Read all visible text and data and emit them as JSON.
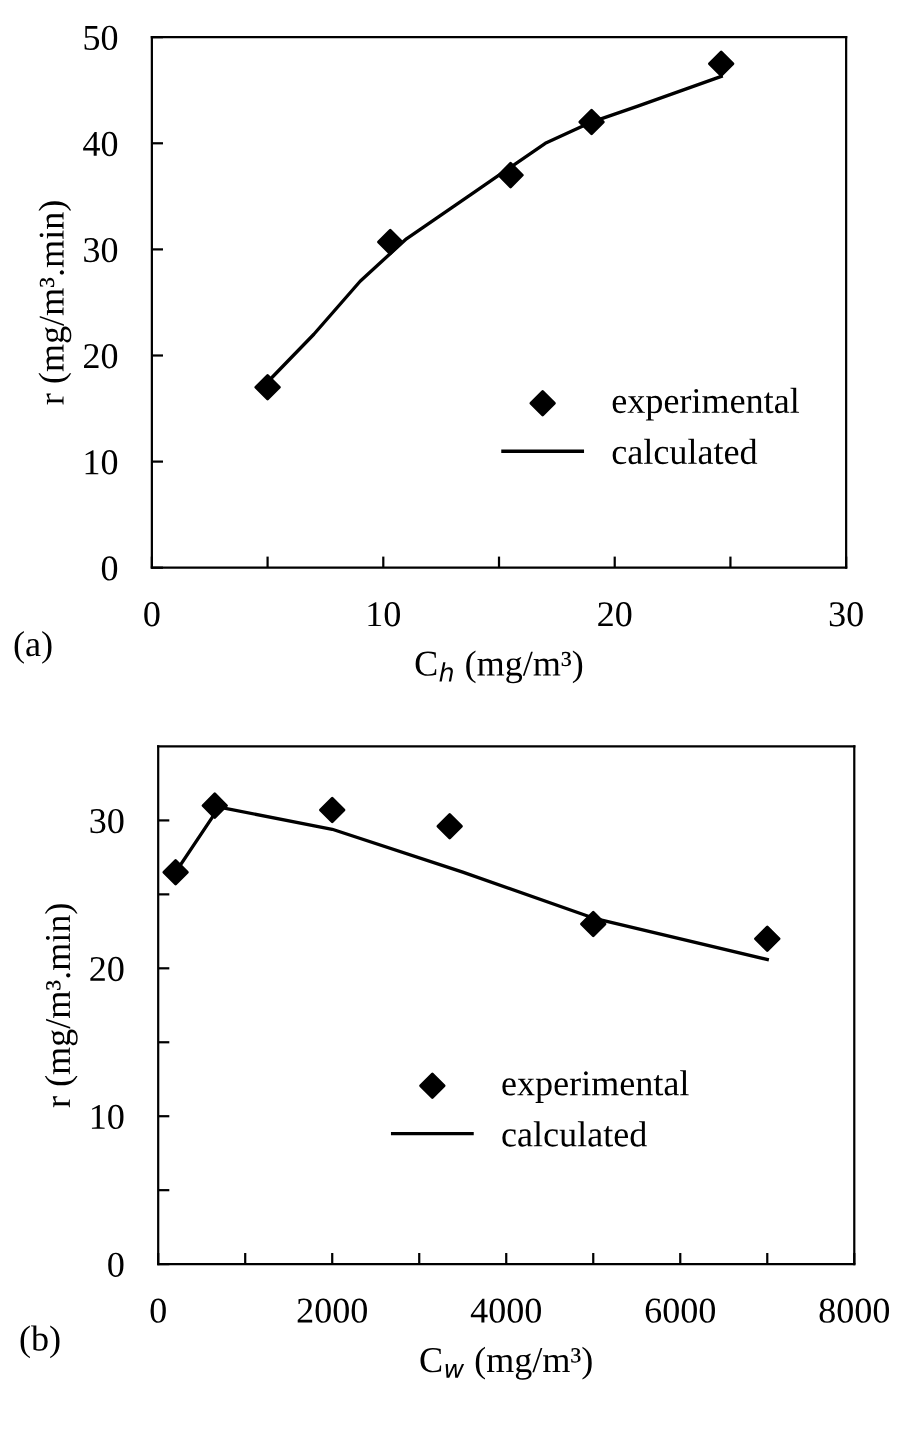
{
  "chart_data": [
    {
      "type": "scatter",
      "xlabel": "C$_{h}$ (mg/m³)",
      "ylabel": "r (mg/m³.min)",
      "annotations": [
        "(a)"
      ],
      "xlim": [
        0,
        30
      ],
      "xticks": [
        0,
        {
          "value": 5,
          "label": null
        },
        10,
        {
          "value": 15,
          "label": null
        },
        20,
        {
          "value": 25,
          "label": null
        },
        30
      ],
      "ylim": [
        0,
        50
      ],
      "yticks": [
        0,
        10,
        20,
        30,
        40,
        50
      ],
      "legend": "lower right",
      "grid": false,
      "series": [
        {
          "name": "experimental",
          "marker": "diamond",
          "color": "#000000",
          "x": [
            5,
            10.3,
            15.5,
            19,
            24.6
          ],
          "values": [
            17,
            30.7,
            37,
            42,
            47.5
          ]
        },
        {
          "name": "calculated",
          "type": "line",
          "marker": "none",
          "line_style": "solid",
          "color": "#000000",
          "x": [
            5,
            7,
            9,
            11,
            14,
            17,
            19,
            21,
            24.6
          ],
          "values": [
            17.5,
            22,
            27,
            31,
            35.5,
            40,
            42,
            43.5,
            46.3
          ]
        }
      ]
    },
    {
      "type": "scatter",
      "xlabel": "C$_{w}$ (mg/m³)",
      "ylabel": "r (mg/m³.min)",
      "annotations": [
        "(b)"
      ],
      "xlim": [
        0,
        8000
      ],
      "xticks": [
        0,
        {
          "value": 1000,
          "label": null
        },
        2000,
        {
          "value": 3000,
          "label": null
        },
        4000,
        {
          "value": 5000,
          "label": null
        },
        6000,
        {
          "value": 7000,
          "label": null
        },
        8000
      ],
      "ylim": [
        0,
        35
      ],
      "yticks": [
        0,
        {
          "value": 5,
          "label": null
        },
        10,
        {
          "value": 15,
          "label": null
        },
        20,
        {
          "value": 25,
          "label": null
        },
        30
      ],
      "legend": "lower center",
      "grid": false,
      "series": [
        {
          "name": "experimental",
          "marker": "diamond",
          "color": "#000000",
          "x": [
            200,
            650,
            2000,
            3350,
            5000,
            7000
          ],
          "values": [
            26.5,
            31,
            30.7,
            29.6,
            23,
            22
          ]
        },
        {
          "name": "calculated",
          "type": "line",
          "marker": "none",
          "line_style": "solid",
          "color": "#000000",
          "x": [
            200,
            700,
            2000,
            3500,
            5000,
            7000
          ],
          "values": [
            26.5,
            30.9,
            29.4,
            26.5,
            23.4,
            20.6
          ]
        }
      ]
    }
  ]
}
